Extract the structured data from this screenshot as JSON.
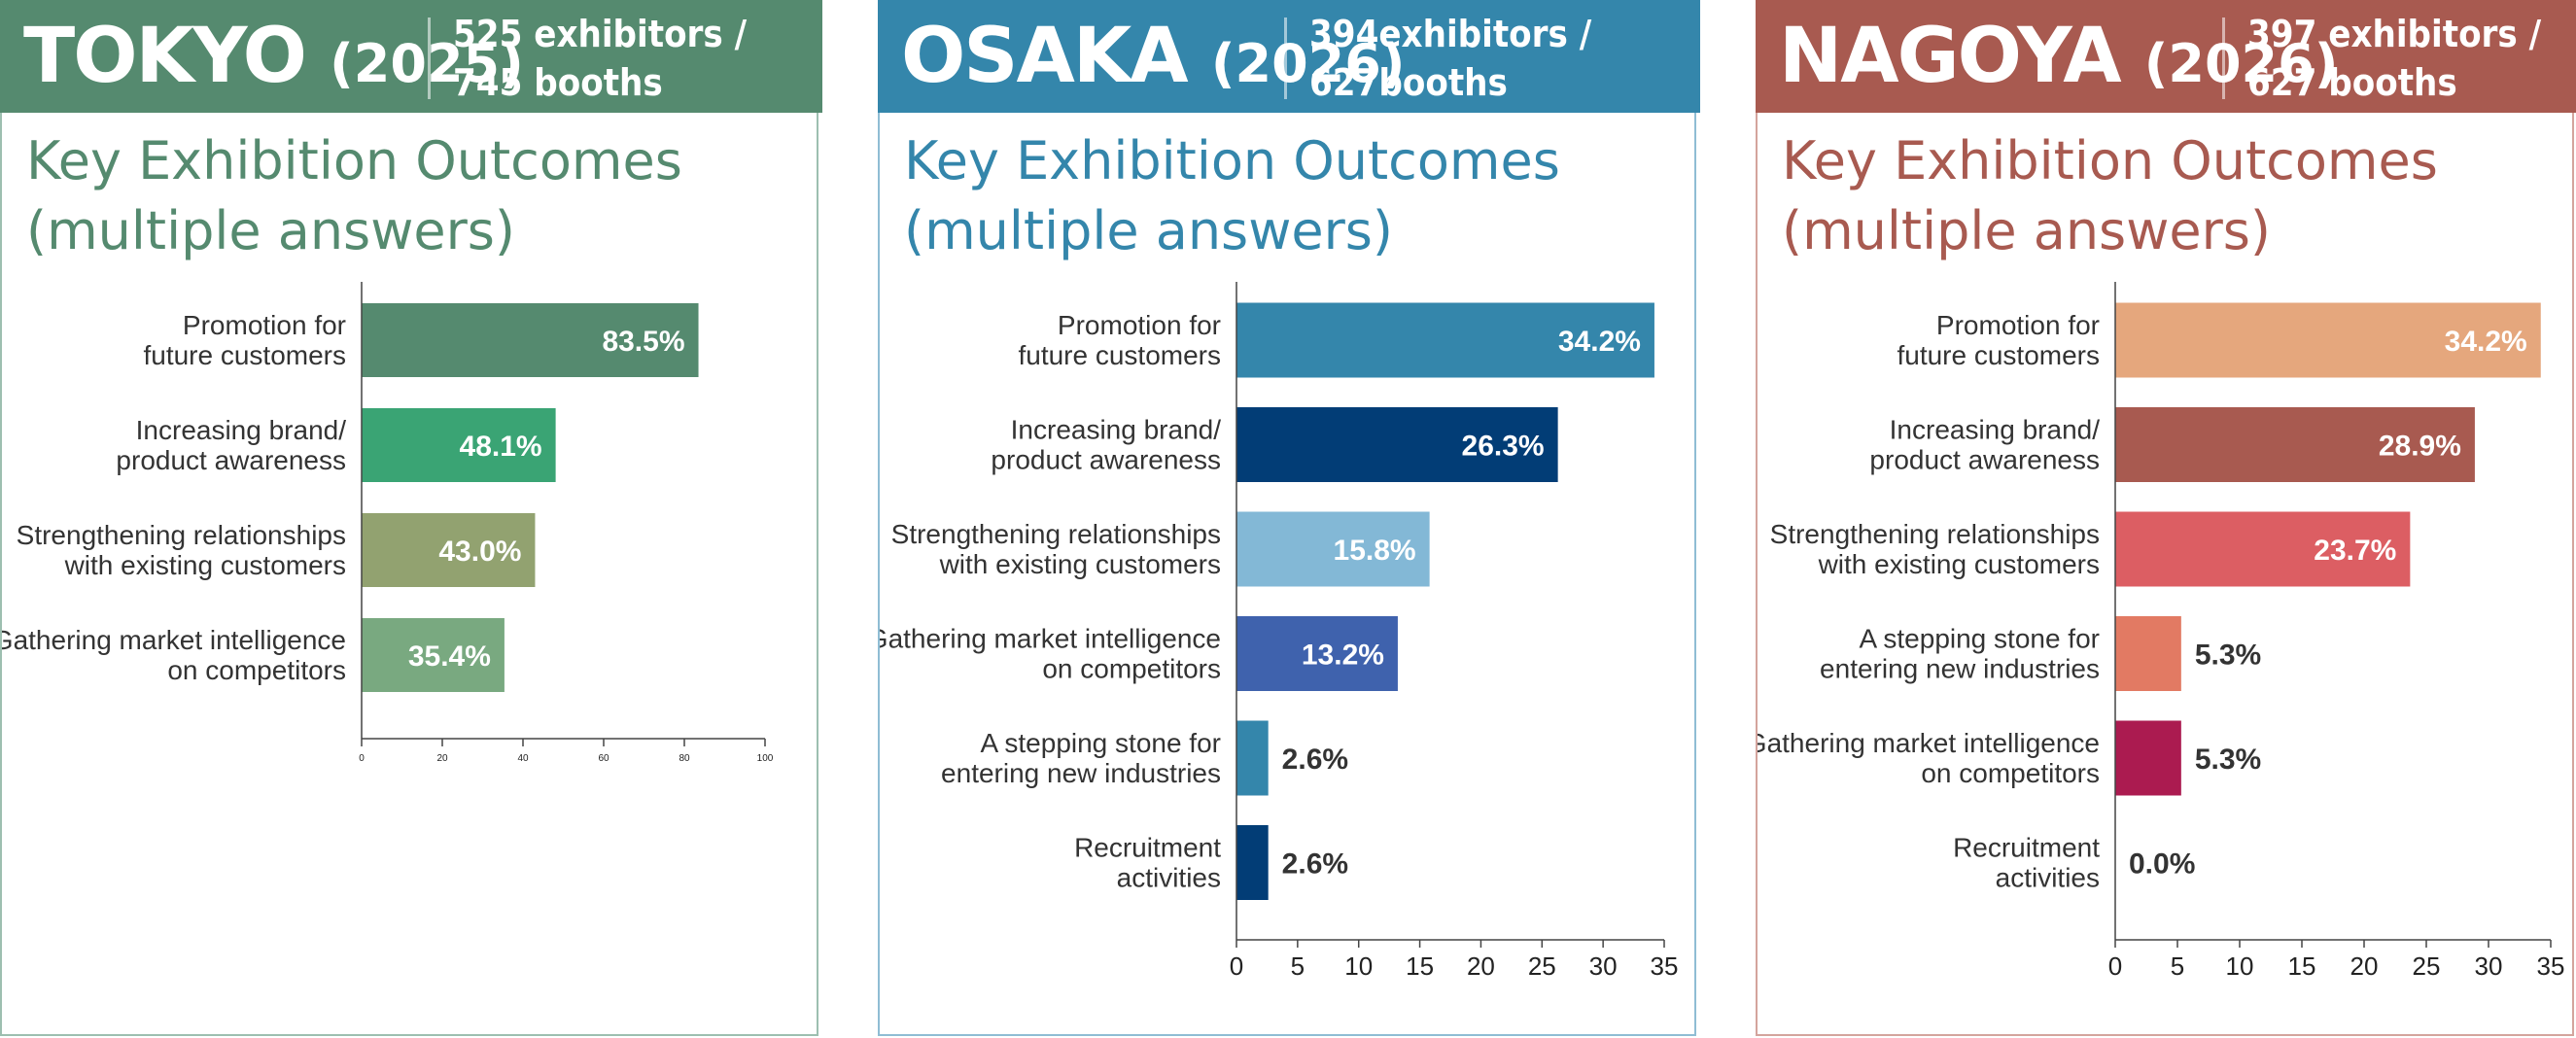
{
  "panels": [
    {
      "city": "TOKYO",
      "year": "(2025)",
      "stats_line1": "525 exhibitors /",
      "stats_line2": "745 booths",
      "subtitle_line1": "Key Exhibition Outcomes",
      "subtitle_line2": "(multiple answers)",
      "colors": {
        "header": "#558a6f",
        "subtitle": "#558a6f",
        "border": "#9dbfb0"
      }
    },
    {
      "city": "OSAKA",
      "year": "(2026)",
      "stats_line1": "394exhibitors /",
      "stats_line2": "627booths",
      "subtitle_line1": "Key Exhibition Outcomes",
      "subtitle_line2": "(multiple answers)",
      "colors": {
        "header": "#3486ab",
        "subtitle": "#3486ab",
        "border": "#8fbdd4"
      }
    },
    {
      "city": "NAGOYA",
      "year": "(2026)",
      "stats_line1": "397 exhibitors /",
      "stats_line2": "627 booths",
      "subtitle_line1": "Key Exhibition Outcomes",
      "subtitle_line2": "(multiple answers)",
      "colors": {
        "header": "#a85a50",
        "subtitle": "#a85a50",
        "border": "#d4a49d"
      }
    }
  ],
  "chart_data": [
    {
      "type": "bar",
      "orientation": "horizontal",
      "categories": [
        [
          "Promotion for",
          "future customers"
        ],
        [
          "Increasing brand/",
          "product awareness"
        ],
        [
          "Strengthening relationships",
          "with existing customers"
        ],
        [
          "Gathering market intelligence",
          "on competitors"
        ]
      ],
      "values": [
        83.5,
        48.1,
        43.0,
        35.4
      ],
      "value_labels": [
        "83.5%",
        "48.1%",
        "43.0%",
        "35.4%"
      ],
      "bar_colors": [
        "#558a6f",
        "#3aa474",
        "#92a270",
        "#79a980"
      ],
      "xlim": [
        0,
        100
      ],
      "xticks": [
        "0",
        "20",
        "40",
        "60",
        "80",
        "100"
      ],
      "tick_values": [
        0,
        20,
        40,
        60,
        80,
        100
      ]
    },
    {
      "type": "bar",
      "orientation": "horizontal",
      "categories": [
        [
          "Promotion for",
          "future customers"
        ],
        [
          "Increasing brand/",
          "product awareness"
        ],
        [
          "Strengthening relationships",
          "with existing customers"
        ],
        [
          "Gathering market intelligence",
          "on competitors"
        ],
        [
          "A stepping stone for",
          "entering new industries"
        ],
        [
          "Recruitment",
          "activities"
        ]
      ],
      "values": [
        34.2,
        26.3,
        15.8,
        13.2,
        2.6,
        2.6
      ],
      "value_labels": [
        "34.2%",
        "26.3%",
        "15.8%",
        "13.2%",
        "2.6%",
        "2.6%"
      ],
      "bar_colors": [
        "#3486ab",
        "#023d76",
        "#83b8d6",
        "#3f62ad",
        "#3486ab",
        "#023d76"
      ],
      "xlim": [
        0,
        35
      ],
      "xticks": [
        "0",
        "5",
        "10",
        "15",
        "20",
        "25",
        "30",
        "35"
      ],
      "tick_values": [
        0,
        5,
        10,
        15,
        20,
        25,
        30,
        35
      ]
    },
    {
      "type": "bar",
      "orientation": "horizontal",
      "categories": [
        [
          "Promotion for",
          "future customers"
        ],
        [
          "Increasing brand/",
          "product awareness"
        ],
        [
          "Strengthening relationships",
          "with existing customers"
        ],
        [
          "A stepping stone for",
          "entering new industries"
        ],
        [
          "Gathering market intelligence",
          "on competitors"
        ],
        [
          "Recruitment",
          "activities"
        ]
      ],
      "values": [
        34.2,
        28.9,
        23.7,
        5.3,
        5.3,
        0.0
      ],
      "value_labels": [
        "34.2%",
        "28.9%",
        "23.7%",
        "5.3%",
        "5.3%",
        "0.0%"
      ],
      "bar_colors": [
        "#e5a77d",
        "#a85a50",
        "#dc5e63",
        "#e27a63",
        "#ab1b50",
        "#cccccc"
      ],
      "xlim": [
        0,
        35
      ],
      "xticks": [
        "0",
        "5",
        "10",
        "15",
        "20",
        "25",
        "30",
        "35"
      ],
      "tick_values": [
        0,
        5,
        10,
        15,
        20,
        25,
        30,
        35
      ]
    }
  ]
}
